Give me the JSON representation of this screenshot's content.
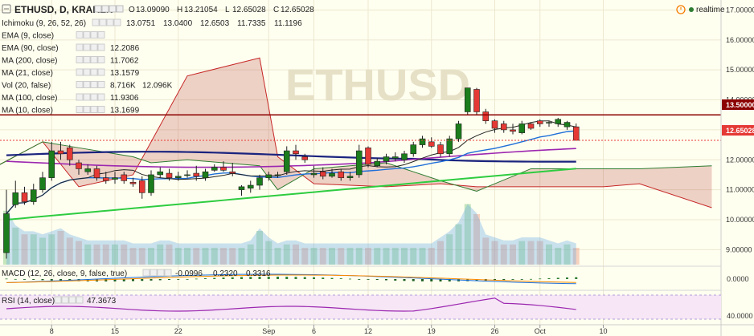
{
  "header": {
    "symbol": "ETHUSD, D, KRAKEN",
    "ohlc": [
      {
        "label": "O",
        "value": "13.09090"
      },
      {
        "label": "H",
        "value": "13.21054"
      },
      {
        "label": "L",
        "value": "12.65028"
      },
      {
        "label": "C",
        "value": "12.65028"
      }
    ],
    "realtime_label": "realtime"
  },
  "legend_rows": [
    {
      "label": "Ichimoku (9, 26, 52, 26)",
      "values": [
        {
          "v": "13.0751",
          "color": "#1e6fd9"
        },
        {
          "v": "13.0400",
          "color": "#8b1a1a"
        },
        {
          "v": "12.6503",
          "color": "#2e7d32"
        },
        {
          "v": "11.7335",
          "color": "#2e7d32"
        },
        {
          "v": "11.1196",
          "color": "#c62828"
        }
      ]
    },
    {
      "label": "EMA (9, close)",
      "values": []
    },
    {
      "label": "EMA (90, close)",
      "values": [
        {
          "v": "12.2086",
          "color": "#9c27b0"
        }
      ]
    },
    {
      "label": "MA (200, close)",
      "values": [
        {
          "v": "11.7062",
          "color": "#2ecc40"
        }
      ]
    },
    {
      "label": "MA (21, close)",
      "values": [
        {
          "v": "13.1579",
          "color": "#1e6fd9"
        }
      ]
    },
    {
      "label": "Vol (20, false)",
      "values": [
        {
          "v": "8.716K",
          "color": "#8b1a1a"
        },
        {
          "v": "12.096K",
          "color": "#1e6fd9"
        }
      ]
    },
    {
      "label": "MA (100, close)",
      "values": [
        {
          "v": "11.9306",
          "color": "#1a237e"
        }
      ]
    },
    {
      "label": "MA (10, close)",
      "values": [
        {
          "v": "13.1699",
          "color": "#222222"
        }
      ]
    }
  ],
  "macd": {
    "label": "MACD (12, 26, close, 9, false, true)",
    "values": [
      {
        "v": "-0.0996",
        "color": "#2e7d32"
      },
      {
        "v": "0.2320",
        "color": "#1e6fd9"
      },
      {
        "v": "0.3316",
        "color": "#ff8c00"
      }
    ],
    "axis_label": "0.0000"
  },
  "rsi": {
    "label": "RSI (14, close)",
    "value": "47.3673",
    "value_color": "#9c27b0",
    "axis_label": "40.0000"
  },
  "price_axis": {
    "ticks": [
      "17.00000",
      "16.00000",
      "15.00000",
      "14.00000",
      "13.00000",
      "12.00000",
      "11.00000",
      "10.00000",
      "9.00000"
    ],
    "marker_level": "13.50000",
    "marker_color": "#8b0000",
    "current_price": "12.65028",
    "current_color": "#e53935"
  },
  "date_axis": {
    "ticks": [
      "8",
      "15",
      "22",
      "Sep",
      "6",
      "12",
      "19",
      "26",
      "Oct",
      "10"
    ]
  },
  "watermark": "ETHUSD",
  "chart_data": {
    "type": "candlestick",
    "title": "ETHUSD, D, KRAKEN",
    "ylim": [
      8.5,
      17.2
    ],
    "dates": [
      "Aug 3",
      "Aug 4",
      "Aug 5",
      "Aug 6",
      "Aug 7",
      "Aug 8",
      "Aug 9",
      "Aug 10",
      "Aug 11",
      "Aug 12",
      "Aug 13",
      "Aug 14",
      "Aug 15",
      "Aug 16",
      "Aug 17",
      "Aug 18",
      "Aug 19",
      "Aug 20",
      "Aug 21",
      "Aug 22",
      "Aug 23",
      "Aug 24",
      "Aug 25",
      "Aug 26",
      "Aug 27",
      "Aug 28",
      "Aug 29",
      "Aug 30",
      "Aug 31",
      "Sep 1",
      "Sep 2",
      "Sep 3",
      "Sep 4",
      "Sep 5",
      "Sep 6",
      "Sep 7",
      "Sep 8",
      "Sep 9",
      "Sep 10",
      "Sep 11",
      "Sep 12",
      "Sep 13",
      "Sep 14",
      "Sep 15",
      "Sep 16",
      "Sep 17",
      "Sep 18",
      "Sep 19",
      "Sep 20",
      "Sep 21",
      "Sep 22",
      "Sep 23",
      "Sep 24",
      "Sep 25",
      "Sep 26",
      "Sep 27",
      "Sep 28",
      "Sep 29",
      "Sep 30",
      "Oct 1",
      "Oct 2",
      "Oct 3",
      "Oct 4",
      "Oct 5"
    ],
    "open": [
      8.9,
      10.5,
      10.9,
      10.6,
      11.0,
      11.4,
      12.3,
      12.4,
      11.9,
      11.6,
      11.7,
      11.4,
      11.35,
      11.5,
      11.25,
      11.3,
      10.9,
      11.5,
      11.55,
      11.4,
      11.5,
      11.55,
      11.4,
      11.65,
      11.75,
      11.6,
      11.0,
      11.05,
      11.15,
      11.4,
      11.5,
      11.6,
      12.3,
      12.1,
      11.5,
      11.6,
      11.45,
      11.6,
      11.4,
      11.5,
      12.4,
      11.8,
      11.95,
      12.05,
      12.0,
      12.2,
      12.5,
      12.6,
      12.5,
      12.2,
      12.7,
      13.6,
      14.35,
      13.6,
      13.3,
      13.2,
      13.0,
      12.9,
      13.2,
      13.3,
      13.25,
      13.2,
      13.1,
      13.1
    ],
    "close": [
      10.2,
      10.9,
      10.6,
      11.0,
      11.4,
      12.3,
      12.2,
      12.0,
      11.7,
      11.7,
      11.4,
      11.3,
      11.4,
      11.3,
      11.2,
      10.9,
      11.5,
      11.6,
      11.4,
      11.45,
      11.5,
      11.45,
      11.6,
      11.75,
      11.65,
      11.55,
      11.1,
      11.15,
      11.4,
      11.5,
      11.5,
      12.3,
      12.2,
      12.0,
      11.55,
      11.45,
      11.55,
      11.4,
      11.45,
      12.3,
      11.85,
      11.95,
      12.1,
      12.1,
      12.2,
      12.5,
      12.7,
      12.45,
      12.2,
      12.7,
      13.2,
      14.4,
      13.6,
      13.3,
      13.05,
      13.0,
      12.95,
      13.2,
      13.05,
      13.2,
      13.25,
      13.35,
      13.25,
      12.65
    ],
    "high": [
      11.0,
      11.3,
      11.1,
      11.2,
      11.6,
      12.6,
      12.6,
      12.5,
      12.0,
      11.85,
      11.8,
      11.6,
      11.6,
      11.6,
      11.4,
      11.45,
      11.65,
      11.75,
      11.7,
      11.6,
      11.65,
      11.8,
      11.7,
      11.85,
      11.95,
      11.9,
      11.15,
      11.3,
      11.5,
      11.6,
      11.6,
      12.45,
      12.5,
      12.2,
      11.8,
      11.75,
      11.7,
      11.7,
      11.6,
      12.5,
      12.45,
      12.05,
      12.2,
      12.25,
      12.3,
      12.6,
      12.8,
      12.75,
      12.6,
      12.8,
      13.3,
      14.4,
      14.4,
      13.7,
      13.35,
      13.3,
      13.2,
      13.3,
      13.25,
      13.35,
      13.3,
      13.4,
      13.3,
      13.21
    ],
    "low": [
      8.7,
      10.4,
      10.5,
      10.5,
      10.9,
      11.3,
      12.0,
      11.8,
      11.5,
      11.5,
      11.3,
      11.2,
      11.2,
      11.2,
      11.1,
      10.7,
      10.8,
      11.4,
      11.3,
      11.3,
      11.4,
      11.3,
      11.3,
      11.6,
      11.6,
      11.45,
      10.8,
      10.9,
      11.0,
      11.3,
      11.4,
      11.5,
      12.0,
      11.9,
      11.4,
      11.35,
      11.4,
      11.3,
      11.3,
      11.4,
      11.75,
      11.75,
      11.85,
      11.95,
      11.9,
      12.1,
      12.4,
      12.4,
      12.1,
      12.1,
      12.6,
      13.5,
      13.5,
      13.2,
      12.9,
      12.9,
      12.85,
      12.85,
      13.0,
      13.1,
      13.1,
      13.1,
      13.0,
      12.65
    ],
    "volume": [
      16,
      11,
      9,
      9,
      8,
      9,
      10,
      8,
      7,
      6,
      6,
      6,
      6,
      6,
      5,
      5,
      5,
      6,
      6,
      5,
      5,
      5,
      5,
      5,
      5,
      5,
      5,
      6,
      10,
      7,
      5,
      6,
      6,
      5,
      5,
      5,
      5,
      5,
      5,
      5,
      5,
      5,
      5,
      5,
      5,
      5,
      5,
      5,
      7,
      9,
      12,
      18,
      15,
      8,
      7,
      6,
      6,
      7,
      7,
      7,
      6,
      5,
      6,
      5
    ],
    "horizontal_line": 13.5,
    "current_price": 12.65028,
    "ma10_last": 13.1699,
    "ma21_last": 13.1579,
    "ma100_last": 11.9306,
    "ma200_last": 11.7062,
    "ema90_last": 12.2086,
    "macd_last": {
      "hist": -0.0996,
      "macd": 0.232,
      "signal": 0.3316
    },
    "rsi_last": 47.3673
  }
}
